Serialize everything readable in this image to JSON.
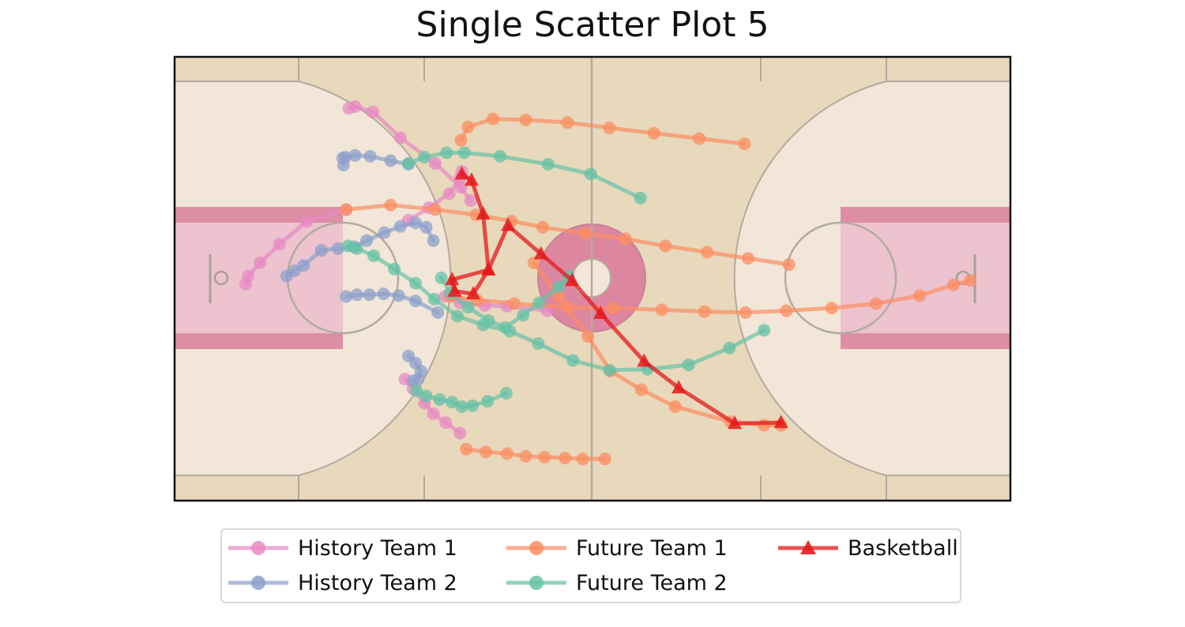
{
  "chart_data": {
    "type": "scatter",
    "title": "Single Scatter Plot 5",
    "xlabel": "",
    "ylabel": "",
    "xlim": [
      0,
      94
    ],
    "ylim": [
      0,
      50
    ],
    "background": "basketball-court",
    "legend_position": "bottom-center",
    "colors": {
      "history_team_1": "#e78ac3",
      "history_team_2": "#8da0cb",
      "future_team_1": "#fc8d62",
      "future_team_2": "#66c2a5",
      "basketball": "#e41a1c"
    },
    "series": [
      {
        "name": "History Team 1",
        "marker": "circle",
        "color": "#e78ac3",
        "trajectories": [
          [
            [
              19.6,
              44.2
            ],
            [
              20.3,
              44.4
            ],
            [
              22.3,
              43.8
            ],
            [
              25.4,
              40.9
            ],
            [
              29.3,
              38.0
            ],
            [
              32.2,
              35.3
            ],
            [
              33.3,
              33.8
            ]
          ],
          [
            [
              8.0,
              24.4
            ],
            [
              8.3,
              25.3
            ],
            [
              9.6,
              26.8
            ],
            [
              11.8,
              28.9
            ],
            [
              14.9,
              31.5
            ],
            [
              19.3,
              32.8
            ]
          ],
          [
            [
              26.3,
              31.6
            ],
            [
              28.6,
              33.0
            ],
            [
              30.9,
              34.6
            ],
            [
              32.1,
              36.3
            ],
            [
              32.3,
              37.1
            ]
          ],
          [
            [
              30.4,
              23.0
            ],
            [
              32.1,
              22.3
            ],
            [
              34.9,
              22.0
            ],
            [
              37.4,
              21.9
            ],
            [
              41.9,
              21.4
            ]
          ],
          [
            [
              25.9,
              13.7
            ],
            [
              26.8,
              12.6
            ],
            [
              28.1,
              11.0
            ],
            [
              29.1,
              9.8
            ],
            [
              30.5,
              8.8
            ],
            [
              32.1,
              7.6
            ]
          ]
        ]
      },
      {
        "name": "History Team 2",
        "marker": "circle",
        "color": "#8da0cb",
        "trajectories": [
          [
            [
              18.9,
              38.6
            ],
            [
              20.3,
              38.9
            ],
            [
              22.0,
              38.8
            ],
            [
              24.3,
              38.3
            ],
            [
              26.3,
              37.9
            ]
          ],
          [
            [
              19.0,
              37.8
            ],
            [
              19.2,
              38.7
            ]
          ],
          [
            [
              12.6,
              25.3
            ],
            [
              13.5,
              25.9
            ],
            [
              14.5,
              26.5
            ],
            [
              16.5,
              28.2
            ],
            [
              18.4,
              28.4
            ],
            [
              20.2,
              28.6
            ],
            [
              21.6,
              29.3
            ],
            [
              23.6,
              30.2
            ],
            [
              25.4,
              30.9
            ],
            [
              27.1,
              31.3
            ],
            [
              28.3,
              30.8
            ],
            [
              29.1,
              29.3
            ]
          ],
          [
            [
              19.3,
              23.0
            ],
            [
              20.5,
              23.2
            ],
            [
              21.9,
              23.2
            ],
            [
              23.5,
              23.3
            ],
            [
              25.2,
              23.1
            ],
            [
              27.1,
              22.5
            ],
            [
              29.6,
              21.2
            ]
          ],
          [
            [
              26.3,
              16.3
            ],
            [
              27.1,
              15.5
            ],
            [
              27.7,
              14.6
            ],
            [
              27.4,
              13.7
            ],
            [
              26.8,
              13.5
            ]
          ]
        ]
      },
      {
        "name": "Future Team 1",
        "marker": "circle",
        "color": "#fc8d62",
        "trajectories": [
          [
            [
              32.2,
              40.6
            ],
            [
              33.0,
              42.1
            ],
            [
              35.8,
              43.0
            ],
            [
              39.5,
              42.9
            ],
            [
              44.2,
              42.6
            ],
            [
              48.9,
              42.0
            ],
            [
              53.9,
              41.4
            ],
            [
              59.0,
              40.8
            ],
            [
              64.1,
              40.2
            ]
          ],
          [
            [
              19.3,
              32.8
            ],
            [
              24.3,
              33.3
            ],
            [
              29.3,
              32.8
            ],
            [
              33.9,
              32.2
            ],
            [
              37.9,
              31.5
            ],
            [
              41.4,
              30.8
            ],
            [
              46.2,
              30.1
            ],
            [
              50.7,
              29.5
            ],
            [
              55.2,
              28.7
            ],
            [
              59.9,
              28.0
            ],
            [
              64.5,
              27.3
            ],
            [
              69.1,
              26.6
            ]
          ],
          [
            [
              31.0,
              23.0
            ],
            [
              34.0,
              22.6
            ],
            [
              38.2,
              22.2
            ],
            [
              44.2,
              21.8
            ],
            [
              49.3,
              21.7
            ],
            [
              54.8,
              21.5
            ],
            [
              59.6,
              21.3
            ],
            [
              64.2,
              21.2
            ],
            [
              68.8,
              21.4
            ],
            [
              73.9,
              21.7
            ],
            [
              78.9,
              22.2
            ],
            [
              83.8,
              23.1
            ],
            [
              87.6,
              24.3
            ],
            [
              89.5,
              24.8
            ]
          ],
          [
            [
              40.4,
              26.8
            ],
            [
              43.2,
              23.0
            ],
            [
              46.5,
              18.5
            ],
            [
              49.0,
              14.6
            ],
            [
              52.5,
              12.5
            ],
            [
              56.3,
              10.6
            ],
            [
              62.5,
              8.9
            ],
            [
              66.3,
              8.5
            ],
            [
              68.2,
              8.5
            ]
          ],
          [
            [
              32.8,
              5.8
            ],
            [
              35.0,
              5.5
            ],
            [
              37.4,
              5.3
            ],
            [
              39.5,
              5.0
            ],
            [
              41.6,
              4.9
            ],
            [
              43.9,
              4.8
            ],
            [
              45.9,
              4.7
            ],
            [
              48.4,
              4.7
            ]
          ]
        ]
      },
      {
        "name": "Future Team 2",
        "marker": "circle",
        "color": "#66c2a5",
        "trajectories": [
          [
            [
              26.3,
              38.0
            ],
            [
              28.1,
              38.7
            ],
            [
              30.6,
              39.2
            ],
            [
              32.6,
              39.2
            ],
            [
              36.6,
              38.8
            ],
            [
              42.0,
              37.9
            ],
            [
              46.8,
              36.8
            ],
            [
              52.4,
              34.1
            ]
          ],
          [
            [
              19.5,
              28.7
            ],
            [
              20.5,
              28.4
            ],
            [
              22.4,
              27.6
            ],
            [
              24.7,
              26.1
            ],
            [
              27.1,
              24.5
            ],
            [
              29.2,
              22.7
            ],
            [
              31.8,
              20.8
            ],
            [
              34.7,
              19.8
            ],
            [
              37.7,
              19.1
            ],
            [
              40.9,
              17.7
            ],
            [
              44.8,
              15.8
            ],
            [
              48.9,
              14.7
            ],
            [
              53.2,
              14.8
            ],
            [
              57.8,
              15.3
            ],
            [
              62.4,
              17.2
            ],
            [
              66.3,
              19.2
            ]
          ],
          [
            [
              30.0,
              25.1
            ],
            [
              31.0,
              23.4
            ],
            [
              33.0,
              21.8
            ],
            [
              35.3,
              20.3
            ],
            [
              37.2,
              19.5
            ],
            [
              39.2,
              20.9
            ],
            [
              41.0,
              22.3
            ],
            [
              43.2,
              24.1
            ],
            [
              44.3,
              25.3
            ]
          ],
          [
            [
              27.2,
              12.4
            ],
            [
              28.3,
              11.8
            ],
            [
              29.8,
              11.4
            ],
            [
              31.2,
              11.1
            ],
            [
              32.3,
              10.6
            ],
            [
              33.5,
              10.7
            ],
            [
              35.2,
              11.2
            ],
            [
              37.3,
              12.1
            ]
          ]
        ]
      },
      {
        "name": "Basketball",
        "marker": "triangle",
        "color": "#e41a1c",
        "trajectories": [
          [
            [
              32.3,
              36.8
            ],
            [
              33.4,
              36.1
            ],
            [
              34.7,
              32.3
            ],
            [
              35.3,
              26.0
            ],
            [
              33.6,
              23.3
            ],
            [
              31.5,
              23.6
            ],
            [
              31.2,
              24.9
            ],
            [
              35.3,
              26.0
            ],
            [
              37.5,
              31.0
            ],
            [
              41.2,
              27.8
            ],
            [
              44.7,
              24.8
            ],
            [
              47.9,
              21.1
            ],
            [
              52.8,
              15.7
            ],
            [
              56.7,
              12.7
            ],
            [
              63.0,
              8.7
            ],
            [
              68.2,
              8.8
            ]
          ]
        ]
      }
    ]
  }
}
